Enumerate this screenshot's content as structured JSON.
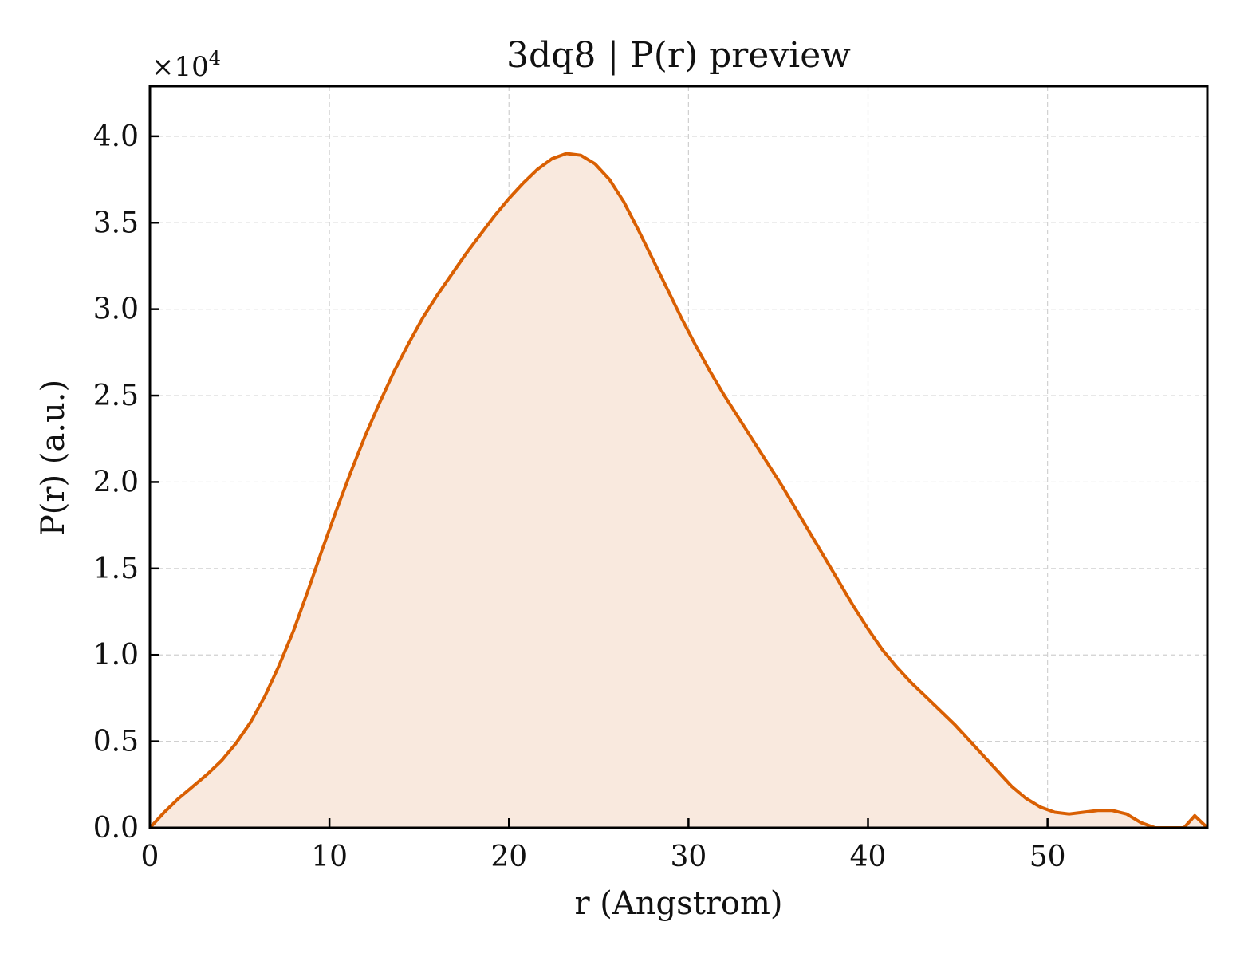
{
  "chart_data": {
    "type": "area",
    "title": "3dq8 | P(r) preview",
    "xlabel": "r (Angstrom)",
    "ylabel": "P(r) (a.u.)",
    "y_multiplier": "×10",
    "y_multiplier_exp": "4",
    "xlim": [
      0,
      58.9
    ],
    "ylim": [
      0,
      4.29
    ],
    "y_scale_factor": 10000,
    "xticks": [
      0,
      10,
      20,
      30,
      40,
      50
    ],
    "xtick_labels": [
      "0",
      "10",
      "20",
      "30",
      "40",
      "50"
    ],
    "yticks": [
      0,
      0.5,
      1.0,
      1.5,
      2.0,
      2.5,
      3.0,
      3.5,
      4.0
    ],
    "ytick_labels": [
      "0.0",
      "0.5",
      "1.0",
      "1.5",
      "2.0",
      "2.5",
      "3.0",
      "3.5",
      "4.0"
    ],
    "grid": true,
    "legend": false,
    "line_color": "#d95f02",
    "fill_color": "#f9e9de",
    "series": [
      {
        "x": [
          0,
          0.8,
          1.6,
          2.4,
          3.2,
          4.0,
          4.8,
          5.6,
          6.4,
          7.2,
          8.0,
          8.8,
          9.6,
          10.4,
          11.2,
          12.0,
          12.8,
          13.6,
          14.4,
          15.2,
          16.0,
          16.8,
          17.6,
          18.4,
          19.2,
          20.0,
          20.8,
          21.6,
          22.4,
          23.2,
          24.0,
          24.8,
          25.6,
          26.4,
          27.2,
          28.0,
          28.8,
          29.6,
          30.4,
          31.2,
          32.0,
          32.8,
          33.6,
          34.4,
          35.2,
          36.0,
          36.8,
          37.6,
          38.4,
          39.2,
          40.0,
          40.8,
          41.6,
          42.4,
          43.2,
          44.0,
          44.8,
          45.6,
          46.4,
          47.2,
          48.0,
          48.8,
          49.6,
          50.4,
          51.2,
          52.0,
          52.8,
          53.6,
          54.4,
          55.2,
          56.0,
          56.8,
          57.6,
          58.2,
          58.9
        ],
        "y": [
          0.0,
          0.09,
          0.17,
          0.24,
          0.31,
          0.39,
          0.49,
          0.61,
          0.76,
          0.94,
          1.14,
          1.37,
          1.61,
          1.84,
          2.06,
          2.27,
          2.46,
          2.64,
          2.8,
          2.95,
          3.08,
          3.2,
          3.32,
          3.43,
          3.54,
          3.64,
          3.73,
          3.81,
          3.87,
          3.9,
          3.89,
          3.84,
          3.75,
          3.62,
          3.46,
          3.29,
          3.12,
          2.95,
          2.79,
          2.64,
          2.5,
          2.37,
          2.24,
          2.11,
          1.98,
          1.84,
          1.7,
          1.56,
          1.42,
          1.28,
          1.15,
          1.03,
          0.93,
          0.84,
          0.76,
          0.68,
          0.6,
          0.51,
          0.42,
          0.33,
          0.24,
          0.17,
          0.12,
          0.09,
          0.08,
          0.09,
          0.1,
          0.1,
          0.08,
          0.03,
          0.0,
          0.0,
          0.0,
          0.07,
          0.0
        ]
      }
    ]
  }
}
